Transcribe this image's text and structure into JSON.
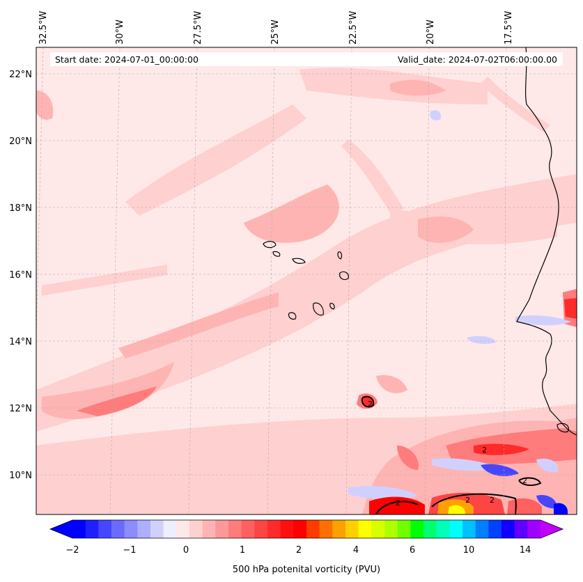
{
  "header": {
    "start_date": "Start date: 2024-07-01_00:00:00",
    "valid_date": "Valid_date: 2024-07-02T06:00:00.00"
  },
  "axes": {
    "lon_labels": [
      "32.5°W",
      "30°W",
      "27.5°W",
      "25°W",
      "22.5°W",
      "20°W",
      "17.5°W"
    ],
    "lat_labels": [
      "22°N",
      "20°N",
      "18°N",
      "16°N",
      "14°N",
      "12°N",
      "10°N"
    ]
  },
  "colorbar": {
    "label": "500 hPa potenital vorticity (PVU)",
    "ticks": [
      "−2",
      "−1",
      "0",
      "1",
      "2",
      "4",
      "6",
      "10",
      "14"
    ],
    "colors": [
      "#0000ff",
      "#2020ff",
      "#4646ff",
      "#6a6aff",
      "#8c8cff",
      "#aeaeff",
      "#d0d0ff",
      "#eeeeff",
      "#ffe8e8",
      "#ffd0d0",
      "#ffb4b4",
      "#ff9898",
      "#ff7c7c",
      "#ff6060",
      "#ff4444",
      "#ff2a2a",
      "#ff1010",
      "#ff0000",
      "#ff3c00",
      "#ff7000",
      "#ffa000",
      "#ffd000",
      "#ffff00",
      "#d8ff00",
      "#b0ff00",
      "#70ff00",
      "#00ff00",
      "#00ff70",
      "#00ffb8",
      "#00ffff",
      "#00c0ff",
      "#0080ff",
      "#0040ff",
      "#1000ff",
      "#6000ff",
      "#a000ff"
    ],
    "extend_low_color": "#0000ff",
    "extend_high_color": "#c000ff"
  },
  "contour_labels": [
    "2",
    "2",
    "2",
    "2",
    "2",
    "2"
  ],
  "colors": {
    "background_field": "#ffe8e8",
    "weak_positive": "#ffd0d0",
    "moderate_positive": "#ffb4b4",
    "coastline": "#000000",
    "gridline": "#aaaaaa"
  }
}
